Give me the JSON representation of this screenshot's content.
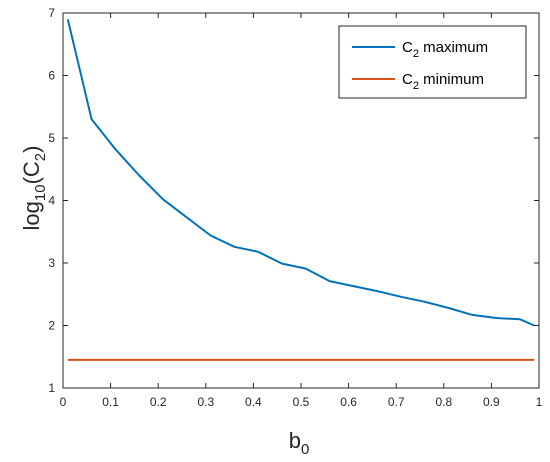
{
  "chart_data": {
    "type": "line",
    "xlabel": "b",
    "xlabel_sub": "0",
    "ylabel_prefix": "log",
    "ylabel_sub": "10",
    "ylabel_mid": "(C",
    "ylabel_sub2": "2",
    "ylabel_suffix": ")",
    "xlim": [
      0,
      1
    ],
    "ylim": [
      1,
      7
    ],
    "xticks": [
      0,
      0.1,
      0.2,
      0.3,
      0.4,
      0.5,
      0.6,
      0.7,
      0.8,
      0.9,
      1
    ],
    "xtick_labels": [
      "0",
      "0.1",
      "0.2",
      "0.3",
      "0.4",
      "0.5",
      "0.6",
      "0.7",
      "0.8",
      "0.9",
      "1"
    ],
    "yticks": [
      1,
      2,
      3,
      4,
      5,
      6,
      7
    ],
    "ytick_labels": [
      "1",
      "2",
      "3",
      "4",
      "5",
      "6",
      "7"
    ],
    "grid": false,
    "legend_position": "top-right",
    "series": [
      {
        "name": "C2 maximum",
        "legend_main": "C",
        "legend_sub": "2",
        "legend_rest": " maximum",
        "color": "#0072BD",
        "x": [
          0.01,
          0.06,
          0.11,
          0.16,
          0.21,
          0.26,
          0.31,
          0.36,
          0.41,
          0.46,
          0.51,
          0.56,
          0.61,
          0.66,
          0.71,
          0.76,
          0.81,
          0.86,
          0.91,
          0.96,
          0.99
        ],
        "y": [
          6.9,
          5.3,
          4.82,
          4.4,
          4.02,
          3.73,
          3.44,
          3.26,
          3.18,
          2.99,
          2.91,
          2.71,
          2.63,
          2.55,
          2.46,
          2.38,
          2.28,
          2.17,
          2.12,
          2.1,
          2.0
        ]
      },
      {
        "name": "C2 minimum",
        "legend_main": "C",
        "legend_sub": "2",
        "legend_rest": " minimum",
        "color": "#D95319",
        "x": [
          0.01,
          0.99
        ],
        "y": [
          1.45,
          1.45
        ]
      }
    ]
  }
}
